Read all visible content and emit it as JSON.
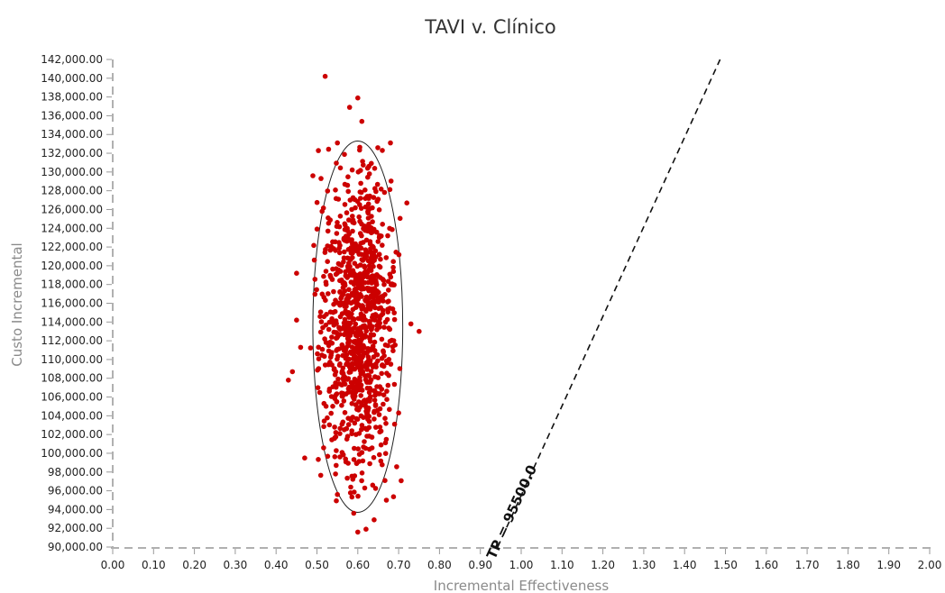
{
  "chart_data": {
    "type": "scatter",
    "title": "TAVI v. Clínico",
    "xlabel": "Incremental Effectiveness",
    "ylabel": "Custo Incremental",
    "xlim": [
      0.0,
      2.0
    ],
    "ylim": [
      90000,
      142000
    ],
    "x_ticks": [
      "0.00",
      "0.10",
      "0.20",
      "0.30",
      "0.40",
      "0.50",
      "0.60",
      "0.70",
      "0.80",
      "0.90",
      "1.00",
      "1.10",
      "1.20",
      "1.30",
      "1.40",
      "1.50",
      "1.60",
      "1.70",
      "1.80",
      "1.90",
      "2.00"
    ],
    "y_ticks": [
      "90,000.00",
      "92,000.00",
      "94,000.00",
      "96,000.00",
      "98,000.00",
      "100,000.00",
      "102,000.00",
      "104,000.00",
      "106,000.00",
      "108,000.00",
      "110,000.00",
      "112,000.00",
      "114,000.00",
      "116,000.00",
      "118,000.00",
      "120,000.00",
      "122,000.00",
      "124,000.00",
      "126,000.00",
      "128,000.00",
      "130,000.00",
      "132,000.00",
      "134,000.00",
      "136,000.00",
      "138,000.00",
      "140,000.00",
      "142,000.00"
    ],
    "grid": false,
    "point_color": "#cc0000",
    "wtp_line": {
      "label": "TP = 95500.0",
      "slope": 95500,
      "style": "dashed"
    },
    "confidence_ellipse": {
      "center": [
        0.6,
        113500
      ],
      "semi_x": 0.11,
      "semi_y": 19800
    },
    "cloud_summary": {
      "n": 1000,
      "mean_x": 0.6,
      "sd_x": 0.045,
      "mean_y": 113500,
      "sd_y": 8000
    },
    "outlier_points": [
      {
        "x": 0.52,
        "y": 140200
      },
      {
        "x": 0.6,
        "y": 137900
      },
      {
        "x": 0.58,
        "y": 136900
      },
      {
        "x": 0.61,
        "y": 135400
      },
      {
        "x": 0.43,
        "y": 107800
      },
      {
        "x": 0.44,
        "y": 108700
      },
      {
        "x": 0.45,
        "y": 114200
      },
      {
        "x": 0.45,
        "y": 119200
      },
      {
        "x": 0.46,
        "y": 111300
      },
      {
        "x": 0.47,
        "y": 99500
      },
      {
        "x": 0.75,
        "y": 113000
      },
      {
        "x": 0.73,
        "y": 113800
      },
      {
        "x": 0.72,
        "y": 126700
      },
      {
        "x": 0.6,
        "y": 91600
      },
      {
        "x": 0.62,
        "y": 91900
      },
      {
        "x": 0.64,
        "y": 92900
      },
      {
        "x": 0.59,
        "y": 93600
      },
      {
        "x": 0.67,
        "y": 95000
      },
      {
        "x": 0.55,
        "y": 95600
      },
      {
        "x": 0.49,
        "y": 129600
      },
      {
        "x": 0.68,
        "y": 133100
      },
      {
        "x": 0.66,
        "y": 132300
      },
      {
        "x": 0.55,
        "y": 133100
      },
      {
        "x": 0.7,
        "y": 104300
      }
    ]
  }
}
